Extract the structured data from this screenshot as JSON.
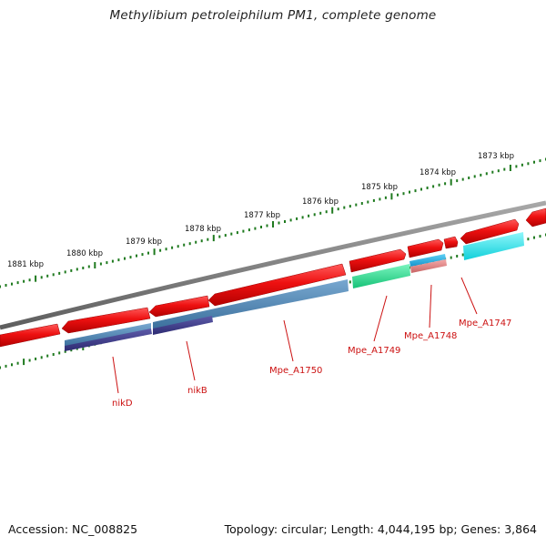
{
  "title": "Methylibium petroleiphilum PM1, complete genome",
  "footer": {
    "accession": "Accession: NC_008825",
    "summary": "Topology: circular; Length: 4,044,195 bp; Genes: 3,864"
  },
  "kbp_labels": [
    "1873 kbp",
    "1874 kbp",
    "1875 kbp",
    "1876 kbp",
    "1877 kbp",
    "1878 kbp",
    "1879 kbp",
    "1880 kbp",
    "1881 kbp"
  ],
  "gene_labels": [
    "nikD",
    "nikB",
    "Mpe_A1750",
    "Mpe_A1749",
    "Mpe_A1748",
    "Mpe_A1747"
  ],
  "colors": {
    "backbone": "#7a7a7a",
    "gene": "#ee1111",
    "tick": "#1f7a1f",
    "label": "#cc1111",
    "blue": "#4f86b6",
    "navy": "#3f3d8e",
    "green": "#2fe08f",
    "cyan": "#19e6ef",
    "sky": "#22aee6",
    "salmon": "#e08080"
  }
}
